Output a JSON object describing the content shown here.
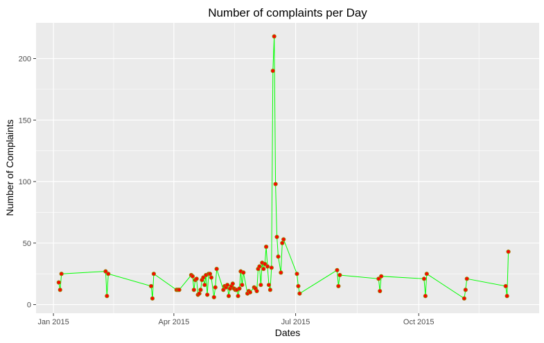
{
  "chart_data": {
    "type": "line",
    "title": "Number of complaints per Day",
    "xlabel": "Dates",
    "ylabel": "Number of Complaints",
    "x_ticks": [
      "Jan 2015",
      "Apr 2015",
      "Jul 2015",
      "Oct 2015"
    ],
    "x_tick_dates": [
      "2015-01-01",
      "2015-04-01",
      "2015-07-01",
      "2015-10-01"
    ],
    "xlim": [
      "2014-12-19",
      "2015-12-30"
    ],
    "y_ticks": [
      0,
      50,
      100,
      150,
      200
    ],
    "ylim": [
      -7,
      229
    ],
    "grid": true,
    "colors": {
      "line": "#00ff00",
      "point_fill": "#ff0000",
      "point_stroke": "#9a7a00",
      "panel": "#ebebeb",
      "grid": "#ffffff"
    },
    "series": [
      {
        "x": [
          "2015-01-05",
          "2015-01-06",
          "2015-01-07",
          "2015-02-09",
          "2015-02-10",
          "2015-02-11",
          "2015-03-15",
          "2015-03-16",
          "2015-03-17",
          "2015-04-03",
          "2015-04-04",
          "2015-04-05",
          "2015-04-14",
          "2015-04-15",
          "2015-04-16",
          "2015-04-17",
          "2015-04-18",
          "2015-04-19",
          "2015-04-20",
          "2015-04-21",
          "2015-04-22",
          "2015-04-23",
          "2015-04-24",
          "2015-04-25",
          "2015-04-26",
          "2015-04-27",
          "2015-04-28",
          "2015-04-29",
          "2015-05-01",
          "2015-05-02",
          "2015-05-03",
          "2015-05-08",
          "2015-05-09",
          "2015-05-10",
          "2015-05-11",
          "2015-05-12",
          "2015-05-13",
          "2015-05-14",
          "2015-05-15",
          "2015-05-16",
          "2015-05-17",
          "2015-05-18",
          "2015-05-19",
          "2015-05-20",
          "2015-05-21",
          "2015-05-22",
          "2015-05-23",
          "2015-05-26",
          "2015-05-27",
          "2015-05-28",
          "2015-05-31",
          "2015-06-01",
          "2015-06-02",
          "2015-06-03",
          "2015-06-04",
          "2015-06-05",
          "2015-06-06",
          "2015-06-07",
          "2015-06-08",
          "2015-06-09",
          "2015-06-10",
          "2015-06-11",
          "2015-06-12",
          "2015-06-13",
          "2015-06-14",
          "2015-06-15",
          "2015-06-16",
          "2015-06-17",
          "2015-06-18",
          "2015-06-20",
          "2015-06-21",
          "2015-06-22",
          "2015-07-02",
          "2015-07-03",
          "2015-07-04",
          "2015-08-01",
          "2015-08-02",
          "2015-08-03",
          "2015-09-01",
          "2015-09-02",
          "2015-09-03",
          "2015-10-05",
          "2015-10-06",
          "2015-10-07",
          "2015-11-04",
          "2015-11-05",
          "2015-11-06",
          "2015-12-05",
          "2015-12-06",
          "2015-12-07"
        ],
        "y": [
          18,
          12,
          25,
          27,
          7,
          25,
          15,
          5,
          25,
          12,
          12,
          12,
          24,
          23,
          12,
          20,
          21,
          8,
          9,
          12,
          20,
          22,
          16,
          24,
          8,
          25,
          25,
          22,
          6,
          14,
          29,
          12,
          15,
          14,
          16,
          7,
          13,
          15,
          17,
          13,
          12,
          12,
          7,
          13,
          27,
          16,
          26,
          9,
          11,
          10,
          14,
          13,
          11,
          29,
          31,
          16,
          34,
          29,
          33,
          47,
          31,
          16,
          12,
          30,
          190,
          218,
          98,
          55,
          39,
          26,
          50,
          53,
          25,
          15,
          9,
          28,
          15,
          24,
          21,
          11,
          23,
          21,
          7,
          25,
          5,
          12,
          21,
          15,
          7,
          43
        ]
      }
    ]
  }
}
